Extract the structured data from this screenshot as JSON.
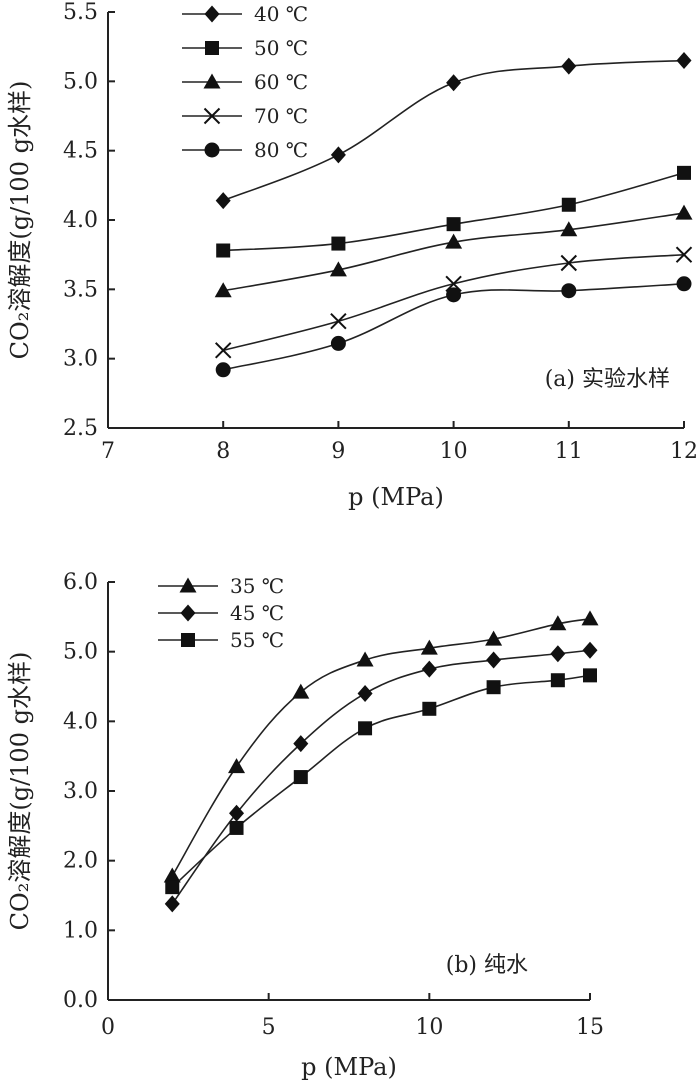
{
  "chart_data": [
    {
      "type": "line",
      "panel_label": "(a) 实验水样",
      "xlabel": "p (MPa)",
      "ylabel": "CO₂溶解度(g/100 g水样)",
      "xlim": [
        7,
        12
      ],
      "ylim": [
        2.5,
        5.5
      ],
      "x_ticks": [
        "7",
        "8",
        "9",
        "10",
        "11",
        "12"
      ],
      "y_ticks": [
        "2.5",
        "3.0",
        "3.5",
        "4.0",
        "4.5",
        "5.0",
        "5.5"
      ],
      "legend_position": "top-left",
      "series": [
        {
          "name": "40 ℃",
          "marker": "diamond",
          "x": [
            8,
            9,
            10,
            11,
            12
          ],
          "values": [
            4.14,
            4.47,
            4.99,
            5.11,
            5.15
          ]
        },
        {
          "name": "50 ℃",
          "marker": "square",
          "x": [
            8,
            9,
            10,
            11,
            12
          ],
          "values": [
            3.78,
            3.83,
            3.97,
            4.11,
            4.34
          ]
        },
        {
          "name": "60 ℃",
          "marker": "triangle",
          "x": [
            8,
            9,
            10,
            11,
            12
          ],
          "values": [
            3.49,
            3.64,
            3.84,
            3.93,
            4.05
          ]
        },
        {
          "name": "70 ℃",
          "marker": "cross",
          "x": [
            8,
            9,
            10,
            11,
            12
          ],
          "values": [
            3.06,
            3.27,
            3.54,
            3.69,
            3.75
          ]
        },
        {
          "name": "80 ℃",
          "marker": "circle",
          "x": [
            8,
            9,
            10,
            11,
            12
          ],
          "values": [
            2.92,
            3.11,
            3.46,
            3.49,
            3.54
          ]
        }
      ]
    },
    {
      "type": "line",
      "panel_label": "(b) 纯水",
      "xlabel": "p (MPa)",
      "ylabel": "CO₂溶解度(g/100 g水样)",
      "xlim": [
        0,
        15
      ],
      "ylim": [
        0,
        6
      ],
      "x_ticks": [
        "0",
        "5",
        "10",
        "15"
      ],
      "y_ticks": [
        "0.0",
        "1.0",
        "2.0",
        "3.0",
        "4.0",
        "5.0",
        "6.0"
      ],
      "legend_position": "top-left",
      "series": [
        {
          "name": "35 ℃",
          "marker": "triangle",
          "x": [
            2,
            4,
            6,
            8,
            10,
            12,
            14,
            15
          ],
          "values": [
            1.78,
            3.35,
            4.42,
            4.88,
            5.05,
            5.18,
            5.4,
            5.47
          ]
        },
        {
          "name": "45 ℃",
          "marker": "diamond",
          "x": [
            2,
            4,
            6,
            8,
            10,
            12,
            14,
            15
          ],
          "values": [
            1.38,
            2.68,
            3.68,
            4.4,
            4.75,
            4.88,
            4.97,
            5.02
          ]
        },
        {
          "name": "55 ℃",
          "marker": "square",
          "x": [
            2,
            4,
            6,
            8,
            10,
            12,
            14,
            15
          ],
          "values": [
            1.62,
            2.47,
            3.2,
            3.9,
            4.18,
            4.49,
            4.59,
            4.66
          ]
        }
      ]
    }
  ]
}
